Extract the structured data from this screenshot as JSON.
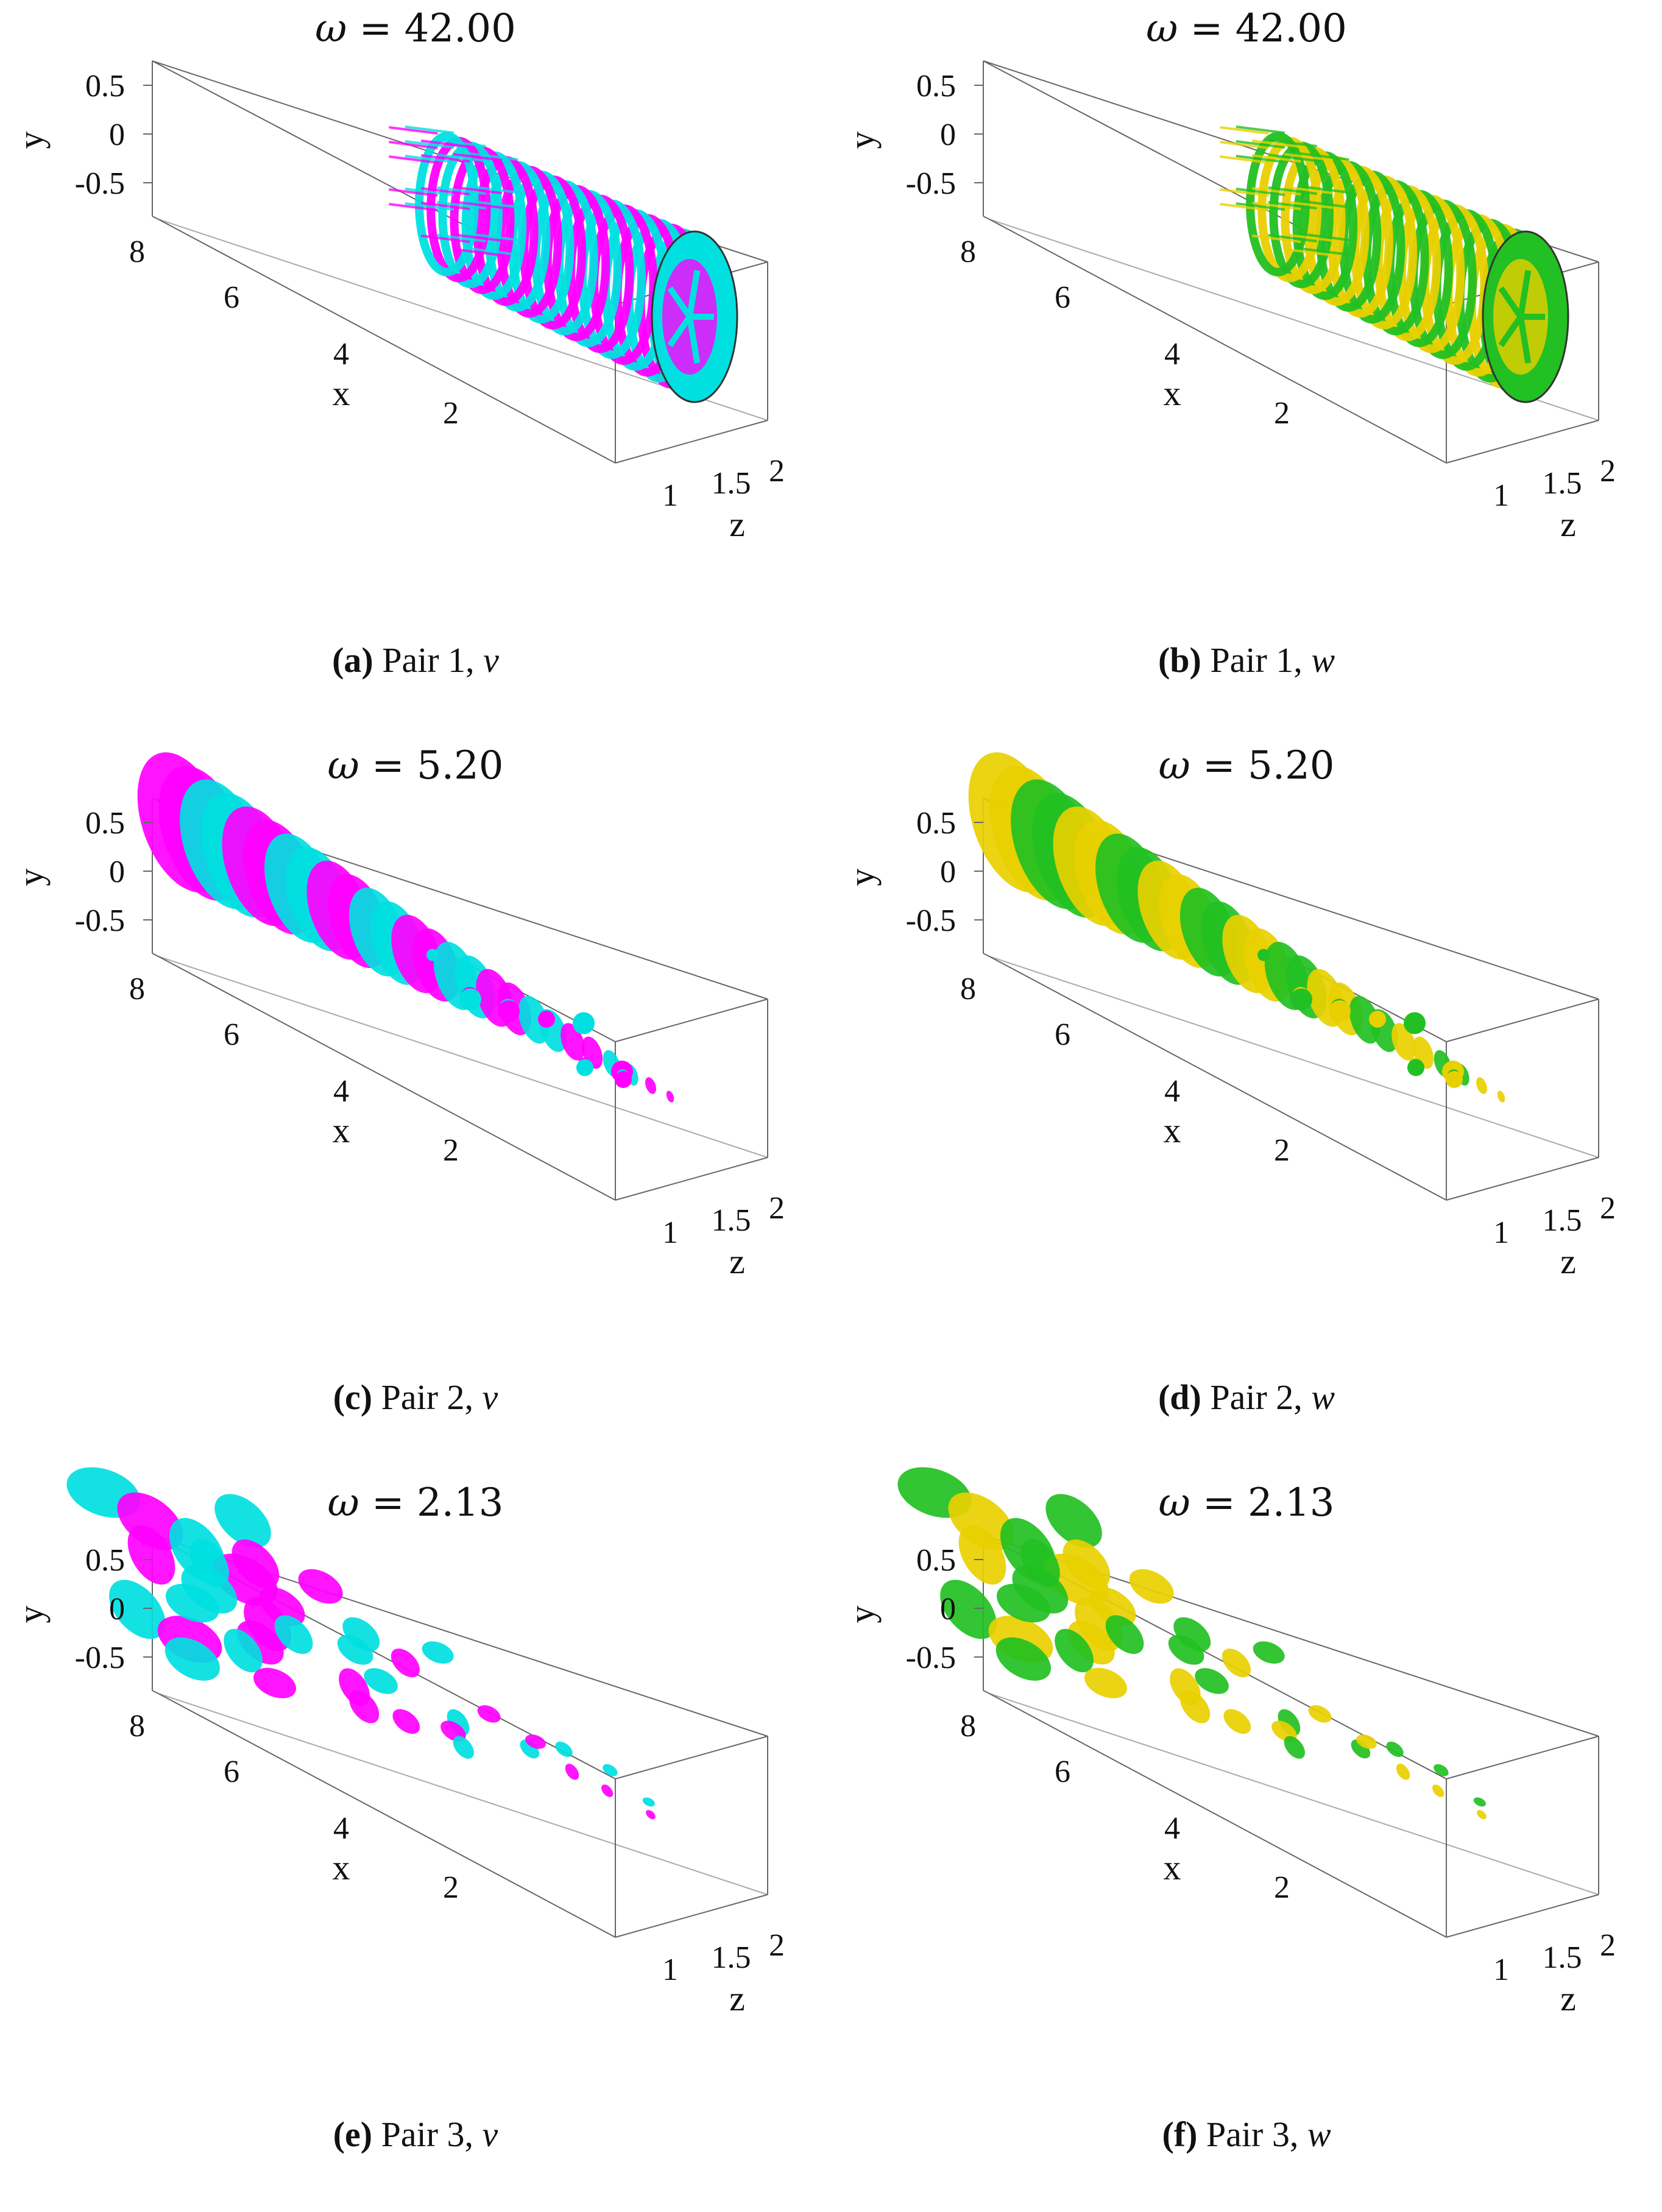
{
  "figure": {
    "panels": [
      {
        "id": "a",
        "title_symbol": "ω",
        "title_value": "= 42.00",
        "caption_letter": "(a)",
        "caption_text": "Pair 1, ",
        "caption_var": "v",
        "pair": 1,
        "variable": "v",
        "colors": [
          "#ff00ff",
          "#00e0e0"
        ],
        "wave_count": 14,
        "pattern": "rings-near-inlet"
      },
      {
        "id": "b",
        "title_symbol": "ω",
        "title_value": "= 42.00",
        "caption_letter": "(b)",
        "caption_text": "Pair 1, ",
        "caption_var": "w",
        "pair": 1,
        "variable": "w",
        "colors": [
          "#e8d000",
          "#22c022"
        ],
        "wave_count": 14,
        "pattern": "rings-near-inlet"
      },
      {
        "id": "c",
        "title_symbol": "ω",
        "title_value": "= 5.20",
        "caption_letter": "(c)",
        "caption_text": "Pair 2, ",
        "caption_var": "v",
        "pair": 2,
        "variable": "v",
        "colors": [
          "#ff00ff",
          "#00e0e0"
        ],
        "wave_count": 8,
        "pattern": "cone"
      },
      {
        "id": "d",
        "title_symbol": "ω",
        "title_value": "= 5.20",
        "caption_letter": "(d)",
        "caption_text": "Pair 2, ",
        "caption_var": "w",
        "pair": 2,
        "variable": "w",
        "colors": [
          "#e8d000",
          "#22c022"
        ],
        "wave_count": 8,
        "pattern": "cone"
      },
      {
        "id": "e",
        "title_symbol": "ω",
        "title_value": "= 2.13",
        "caption_letter": "(e)",
        "caption_text": "Pair 3, ",
        "caption_var": "v",
        "pair": 3,
        "variable": "v",
        "colors": [
          "#ff00ff",
          "#00e0e0"
        ],
        "wave_count": 5,
        "pattern": "blobs"
      },
      {
        "id": "f",
        "title_symbol": "ω",
        "title_value": "= 2.13",
        "caption_letter": "(f)",
        "caption_text": "Pair 3, ",
        "caption_var": "w",
        "pair": 3,
        "variable": "w",
        "colors": [
          "#e8d000",
          "#22c022"
        ],
        "wave_count": 5,
        "pattern": "blobs"
      }
    ],
    "axes": {
      "y_label": "y",
      "x_label": "x",
      "z_label": "z",
      "y_ticks": [
        "0.5",
        "0",
        "-0.5"
      ],
      "x_ticks": [
        "8",
        "6",
        "4",
        "2"
      ],
      "z_ticks": [
        "1",
        "1.5",
        "2"
      ]
    }
  }
}
